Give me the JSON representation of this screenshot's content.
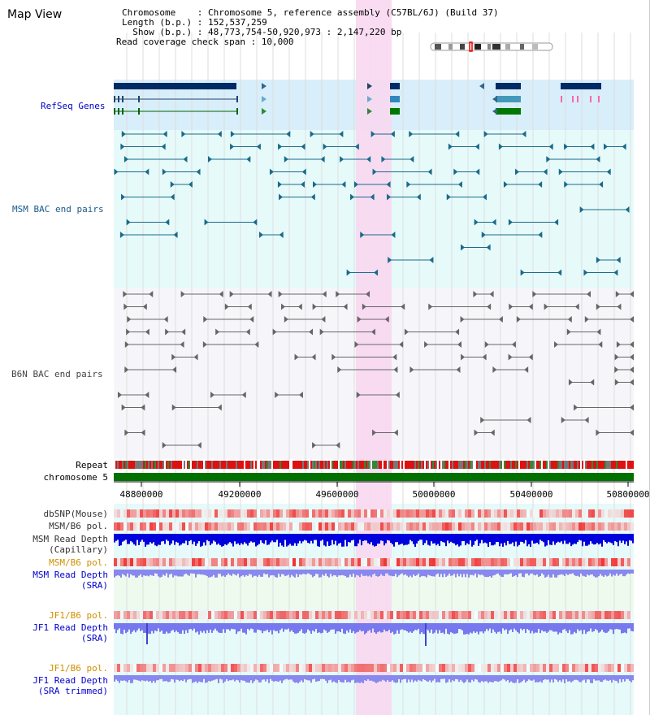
{
  "title": "Map View",
  "info": {
    "chromosome": "Chromosome    : Chromosome 5, reference assembly (C57BL/6J) (Build 37)",
    "length": "Length (b.p.) : 152,537,259",
    "show": "  Show (b.p.) : 48,773,754-50,920,973 : 2,147,220 bp",
    "span": "Read coverage check span : 10,000"
  },
  "tracks": {
    "refseq": "RefSeq Genes",
    "msm_bac": "MSM BAC end pairs",
    "b6n_bac": "B6N BAC end pairs",
    "repeat": "Repeat",
    "chromosome": "chromosome 5",
    "dbsnp": "dbSNP(Mouse)",
    "msm_b6_pol1": "MSM/B6 pol.",
    "msm_depth_cap_1": "MSM Read Depth",
    "msm_depth_cap_2": "(Capillary)",
    "msm_b6_pol2": "MSM/B6 pol.",
    "msm_depth_sra_1": "MSM Read Depth",
    "msm_depth_sra_2": "(SRA)",
    "jf1_b6_pol1": "JF1/B6 pol.",
    "jf1_depth_sra_1": "JF1 Read Depth",
    "jf1_depth_sra_2": "(SRA)",
    "jf1_b6_pol2": "JF1/B6 pol.",
    "jf1_depth_trim_1": "JF1 Read Depth",
    "jf1_depth_trim_2": "(SRA trimmed)"
  },
  "axis": {
    "ticks": [
      "48800000",
      "49200000",
      "49600000",
      "50000000",
      "50400000",
      "50800000"
    ]
  },
  "colors": {
    "refseq_label": "#0000cc",
    "msm_label": "#1a5a8a",
    "b6n_label": "#444444",
    "highlight": "#f8d8f0",
    "chromosome_bar": "#007000",
    "pol_orange": "#d09000",
    "depth_blue": "#0000cc"
  }
}
